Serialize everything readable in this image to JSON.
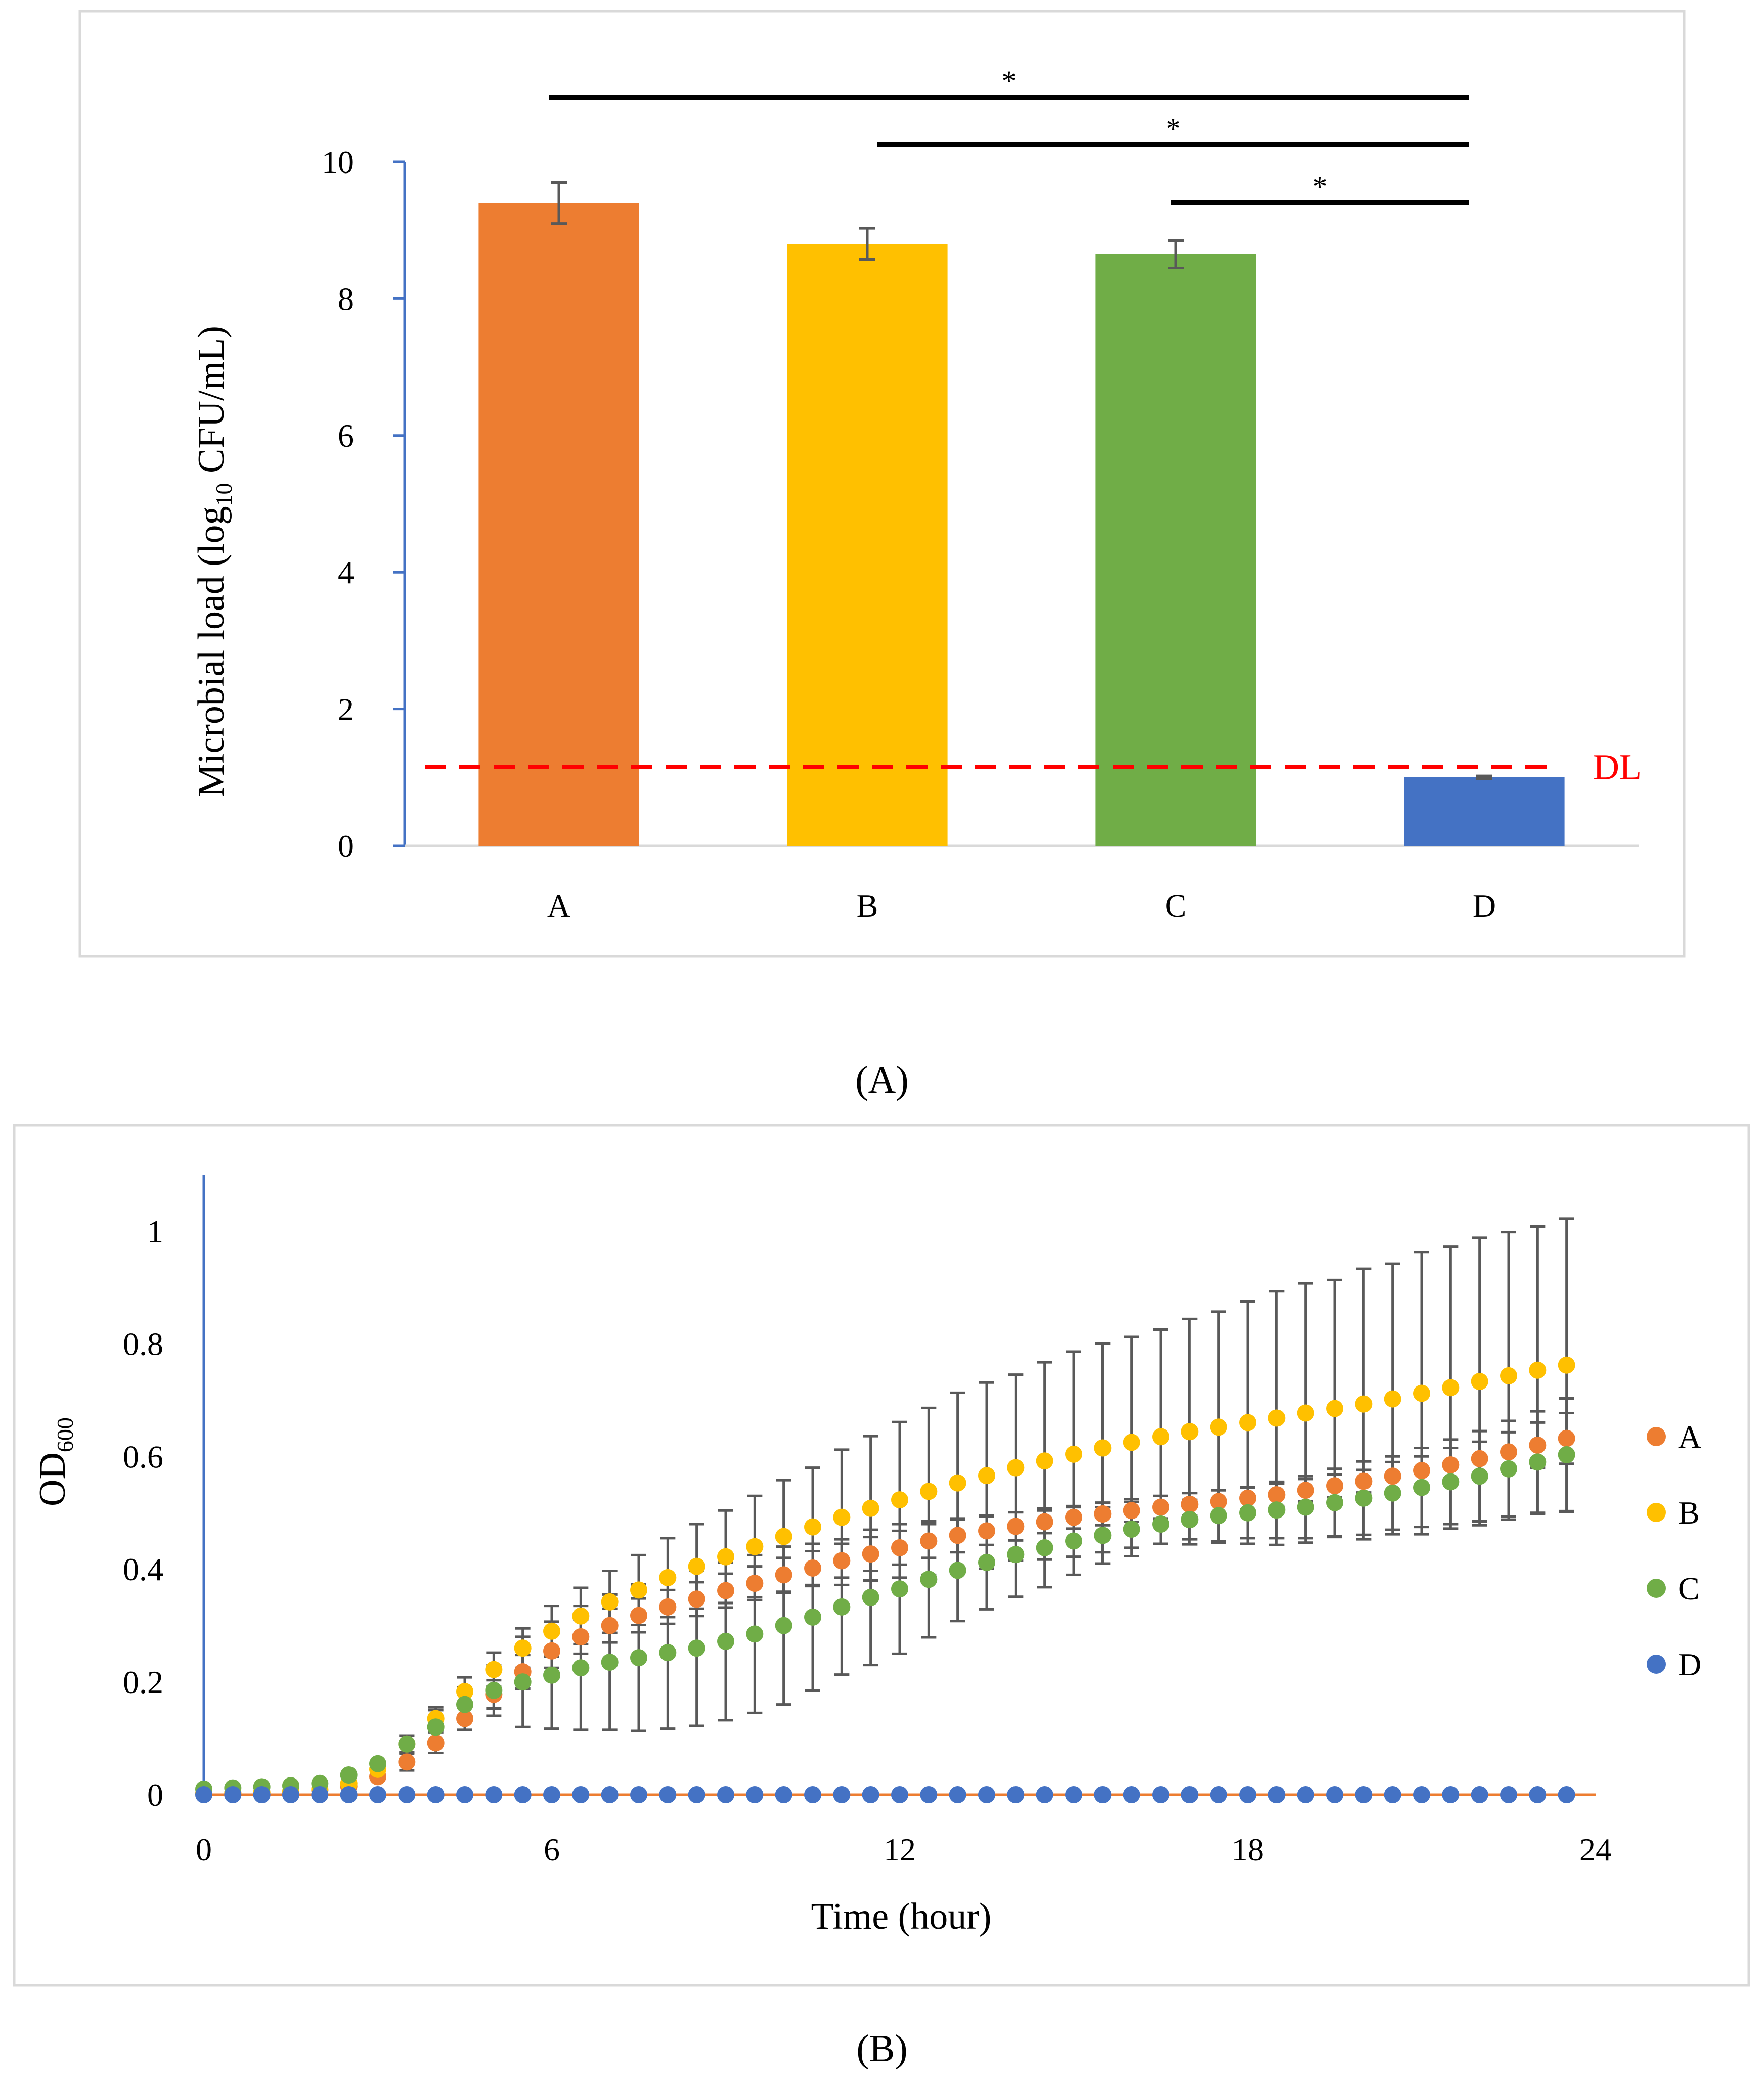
{
  "chart_data": [
    {
      "type": "bar",
      "panel_label": "(A)",
      "categories": [
        "A",
        "B",
        "C",
        "D"
      ],
      "values": [
        9.4,
        8.8,
        8.65,
        1.0
      ],
      "errors": [
        0.3,
        0.23,
        0.2,
        0.02
      ],
      "colors": [
        "#ED7D31",
        "#FFC000",
        "#70AD47",
        "#4472C4"
      ],
      "xlabel": "",
      "ylabel_parts": {
        "main": "Microbial load (log",
        "sub": "10",
        "rest": " CFU/mL)"
      },
      "ylim": [
        0,
        10
      ],
      "yticks": [
        0,
        2,
        4,
        6,
        8,
        10
      ],
      "grid": false,
      "detection_limit": {
        "value": 1.15,
        "label": "DL",
        "color": "#FF0000"
      },
      "significance": [
        {
          "from": "A",
          "to": "D",
          "label": "*"
        },
        {
          "from": "B",
          "to": "D",
          "label": "*"
        },
        {
          "from": "C",
          "to": "D",
          "label": "*"
        }
      ]
    },
    {
      "type": "scatter",
      "panel_label": "(B)",
      "xlabel": "Time (hour)",
      "ylabel_parts": {
        "main": "OD",
        "sub": "600"
      },
      "xlim": [
        0,
        24
      ],
      "ylim": [
        0,
        1.1
      ],
      "xticks": [
        0,
        6,
        12,
        18,
        24
      ],
      "yticks": [
        0,
        0.2,
        0.4,
        0.6,
        0.8,
        1
      ],
      "ytick_labels": [
        "0",
        "0.2",
        "0.4",
        "0.6",
        "0.8",
        "1"
      ],
      "grid": false,
      "legend_position": "right",
      "x": [
        0,
        0.5,
        1,
        1.5,
        2,
        2.5,
        3,
        3.5,
        4,
        4.5,
        5,
        5.5,
        6,
        6.5,
        7,
        7.5,
        8,
        8.5,
        9,
        9.5,
        10,
        10.5,
        11,
        11.5,
        12,
        12.5,
        13,
        13.5,
        14,
        14.5,
        15,
        15.5,
        16,
        16.5,
        17,
        17.5,
        18,
        18.5,
        19,
        19.5,
        20,
        20.5,
        21,
        21.5,
        22,
        22.5,
        23,
        23.5
      ],
      "series": [
        {
          "name": "A",
          "color": "#ED7D31",
          "values": [
            0.002,
            0.003,
            0.004,
            0.005,
            0.008,
            0.015,
            0.032,
            0.058,
            0.092,
            0.135,
            0.178,
            0.218,
            0.255,
            0.28,
            0.3,
            0.318,
            0.333,
            0.347,
            0.362,
            0.375,
            0.39,
            0.402,
            0.415,
            0.427,
            0.438,
            0.45,
            0.46,
            0.468,
            0.476,
            0.484,
            0.492,
            0.498,
            0.504,
            0.51,
            0.515,
            0.52,
            0.526,
            0.532,
            0.54,
            0.548,
            0.556,
            0.565,
            0.575,
            0.585,
            0.596,
            0.608,
            0.62,
            0.632
          ],
          "errors": [
            0.002,
            0.002,
            0.002,
            0.003,
            0.004,
            0.006,
            0.01,
            0.015,
            0.018,
            0.02,
            0.025,
            0.03,
            0.03,
            0.03,
            0.03,
            0.03,
            0.03,
            0.03,
            0.03,
            0.03,
            0.03,
            0.03,
            0.03,
            0.03,
            0.03,
            0.03,
            0.03,
            0.025,
            0.025,
            0.02,
            0.02,
            0.02,
            0.02,
            0.02,
            0.02,
            0.02,
            0.02,
            0.02,
            0.02,
            0.02,
            0.02,
            0.025,
            0.025,
            0.03,
            0.03,
            0.035,
            0.04,
            0.045
          ]
        },
        {
          "name": "B",
          "color": "#FFC000",
          "values": [
            0.002,
            0.003,
            0.004,
            0.006,
            0.01,
            0.02,
            0.045,
            0.09,
            0.135,
            0.183,
            0.222,
            0.26,
            0.29,
            0.317,
            0.342,
            0.363,
            0.385,
            0.405,
            0.422,
            0.44,
            0.458,
            0.475,
            0.492,
            0.508,
            0.523,
            0.538,
            0.553,
            0.566,
            0.58,
            0.592,
            0.604,
            0.615,
            0.625,
            0.635,
            0.644,
            0.652,
            0.66,
            0.668,
            0.677,
            0.685,
            0.693,
            0.702,
            0.712,
            0.722,
            0.733,
            0.743,
            0.753,
            0.762
          ],
          "errors": [
            0.002,
            0.002,
            0.002,
            0.003,
            0.004,
            0.006,
            0.01,
            0.015,
            0.02,
            0.025,
            0.03,
            0.035,
            0.045,
            0.05,
            0.055,
            0.062,
            0.07,
            0.075,
            0.082,
            0.09,
            0.1,
            0.105,
            0.12,
            0.128,
            0.138,
            0.148,
            0.16,
            0.165,
            0.165,
            0.175,
            0.182,
            0.185,
            0.187,
            0.19,
            0.2,
            0.205,
            0.215,
            0.225,
            0.23,
            0.228,
            0.24,
            0.24,
            0.25,
            0.25,
            0.255,
            0.255,
            0.255,
            0.26
          ]
        },
        {
          "name": "C",
          "color": "#70AD47",
          "values": [
            0.01,
            0.012,
            0.014,
            0.016,
            0.02,
            0.035,
            0.055,
            0.09,
            0.12,
            0.16,
            0.185,
            0.2,
            0.212,
            0.225,
            0.235,
            0.243,
            0.252,
            0.26,
            0.272,
            0.285,
            0.3,
            0.315,
            0.333,
            0.35,
            0.365,
            0.382,
            0.398,
            0.412,
            0.426,
            0.438,
            0.45,
            0.46,
            0.471,
            0.48,
            0.488,
            0.495,
            0.5,
            0.505,
            0.51,
            0.518,
            0.526,
            0.535,
            0.545,
            0.555,
            0.565,
            0.578,
            0.59,
            0.603
          ],
          "errors": [
            0.002,
            0.002,
            0.002,
            0.003,
            0.004,
            0.006,
            0.01,
            0.015,
            0.03,
            0.03,
            0.045,
            0.08,
            0.095,
            0.11,
            0.12,
            0.13,
            0.135,
            0.138,
            0.14,
            0.14,
            0.14,
            0.13,
            0.12,
            0.12,
            0.115,
            0.103,
            0.09,
            0.083,
            0.075,
            0.07,
            0.06,
            0.05,
            0.048,
            0.035,
            0.035,
            0.045,
            0.045,
            0.05,
            0.055,
            0.06,
            0.065,
            0.065,
            0.07,
            0.075,
            0.08,
            0.085,
            0.09,
            0.1
          ]
        },
        {
          "name": "D",
          "color": "#4472C4",
          "values": [
            0,
            0,
            0,
            0,
            0,
            0,
            0,
            0,
            0,
            0,
            0,
            0,
            0,
            0,
            0,
            0,
            0,
            0,
            0,
            0,
            0,
            0,
            0,
            0,
            0,
            0,
            0,
            0,
            0,
            0,
            0,
            0,
            0,
            0,
            0,
            0,
            0,
            0,
            0,
            0,
            0,
            0,
            0,
            0,
            0,
            0,
            0,
            0
          ]
        }
      ]
    }
  ]
}
